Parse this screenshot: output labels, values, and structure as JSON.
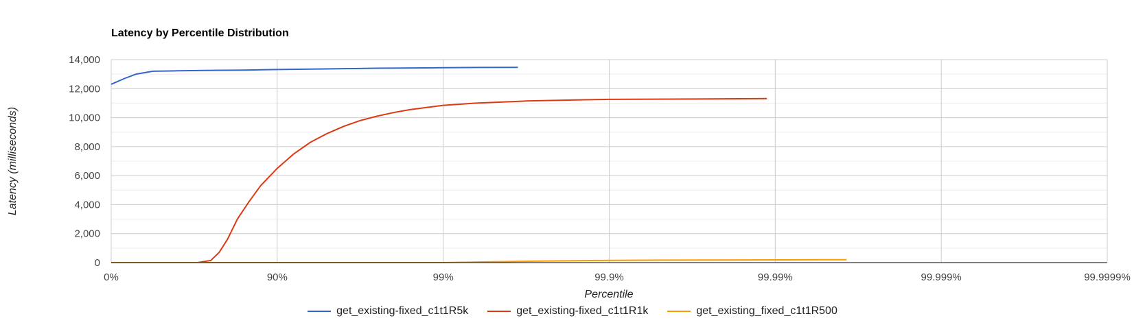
{
  "chart_data": {
    "type": "line",
    "title": "Latency by Percentile Distribution",
    "xlabel": "Percentile",
    "ylabel": "Latency (milliseconds)",
    "x_scale": "nines (percentile = 100 - 100/10^x)",
    "x_ticks": [
      "0%",
      "90%",
      "99%",
      "99.9%",
      "99.99%",
      "99.999%",
      "99.9999%"
    ],
    "y_ticks": [
      "0",
      "2,000",
      "4,000",
      "6,000",
      "8,000",
      "10,000",
      "12,000",
      "14,000"
    ],
    "ylim": [
      0,
      14000
    ],
    "xlim": [
      0,
      6
    ],
    "grid": true,
    "legend_position": "bottom",
    "series": [
      {
        "name": "get_existing-fixed_c1t1R5k",
        "color": "#3366cc",
        "points": [
          [
            0,
            12300
          ],
          [
            0.08,
            12700
          ],
          [
            0.15,
            13000
          ],
          [
            0.25,
            13200
          ],
          [
            0.4,
            13230
          ],
          [
            0.6,
            13260
          ],
          [
            0.8,
            13280
          ],
          [
            1.0,
            13320
          ],
          [
            1.3,
            13360
          ],
          [
            1.6,
            13410
          ],
          [
            2.0,
            13440
          ],
          [
            2.2,
            13460
          ],
          [
            2.45,
            13470
          ]
        ]
      },
      {
        "name": "get_existing-fixed_c1t1R1k",
        "color": "#dc3912",
        "points": [
          [
            0,
            0
          ],
          [
            0.3,
            0
          ],
          [
            0.52,
            0
          ],
          [
            0.6,
            150
          ],
          [
            0.65,
            700
          ],
          [
            0.7,
            1600
          ],
          [
            0.76,
            3000
          ],
          [
            0.83,
            4200
          ],
          [
            0.9,
            5300
          ],
          [
            1.0,
            6500
          ],
          [
            1.1,
            7500
          ],
          [
            1.2,
            8300
          ],
          [
            1.3,
            8900
          ],
          [
            1.4,
            9400
          ],
          [
            1.5,
            9800
          ],
          [
            1.6,
            10100
          ],
          [
            1.7,
            10350
          ],
          [
            1.8,
            10550
          ],
          [
            1.9,
            10700
          ],
          [
            2.0,
            10850
          ],
          [
            2.2,
            11000
          ],
          [
            2.5,
            11150
          ],
          [
            2.8,
            11220
          ],
          [
            3.0,
            11260
          ],
          [
            3.4,
            11280
          ],
          [
            3.7,
            11300
          ],
          [
            3.95,
            11320
          ]
        ]
      },
      {
        "name": "get_existing_fixed_c1t1R500",
        "color": "#ff9900",
        "points": [
          [
            0,
            0
          ],
          [
            1.5,
            0
          ],
          [
            2.0,
            0
          ],
          [
            2.3,
            60
          ],
          [
            2.6,
            110
          ],
          [
            3.0,
            150
          ],
          [
            3.3,
            170
          ],
          [
            3.6,
            180
          ],
          [
            4.0,
            190
          ],
          [
            4.3,
            200
          ],
          [
            4.43,
            200
          ]
        ]
      }
    ]
  }
}
